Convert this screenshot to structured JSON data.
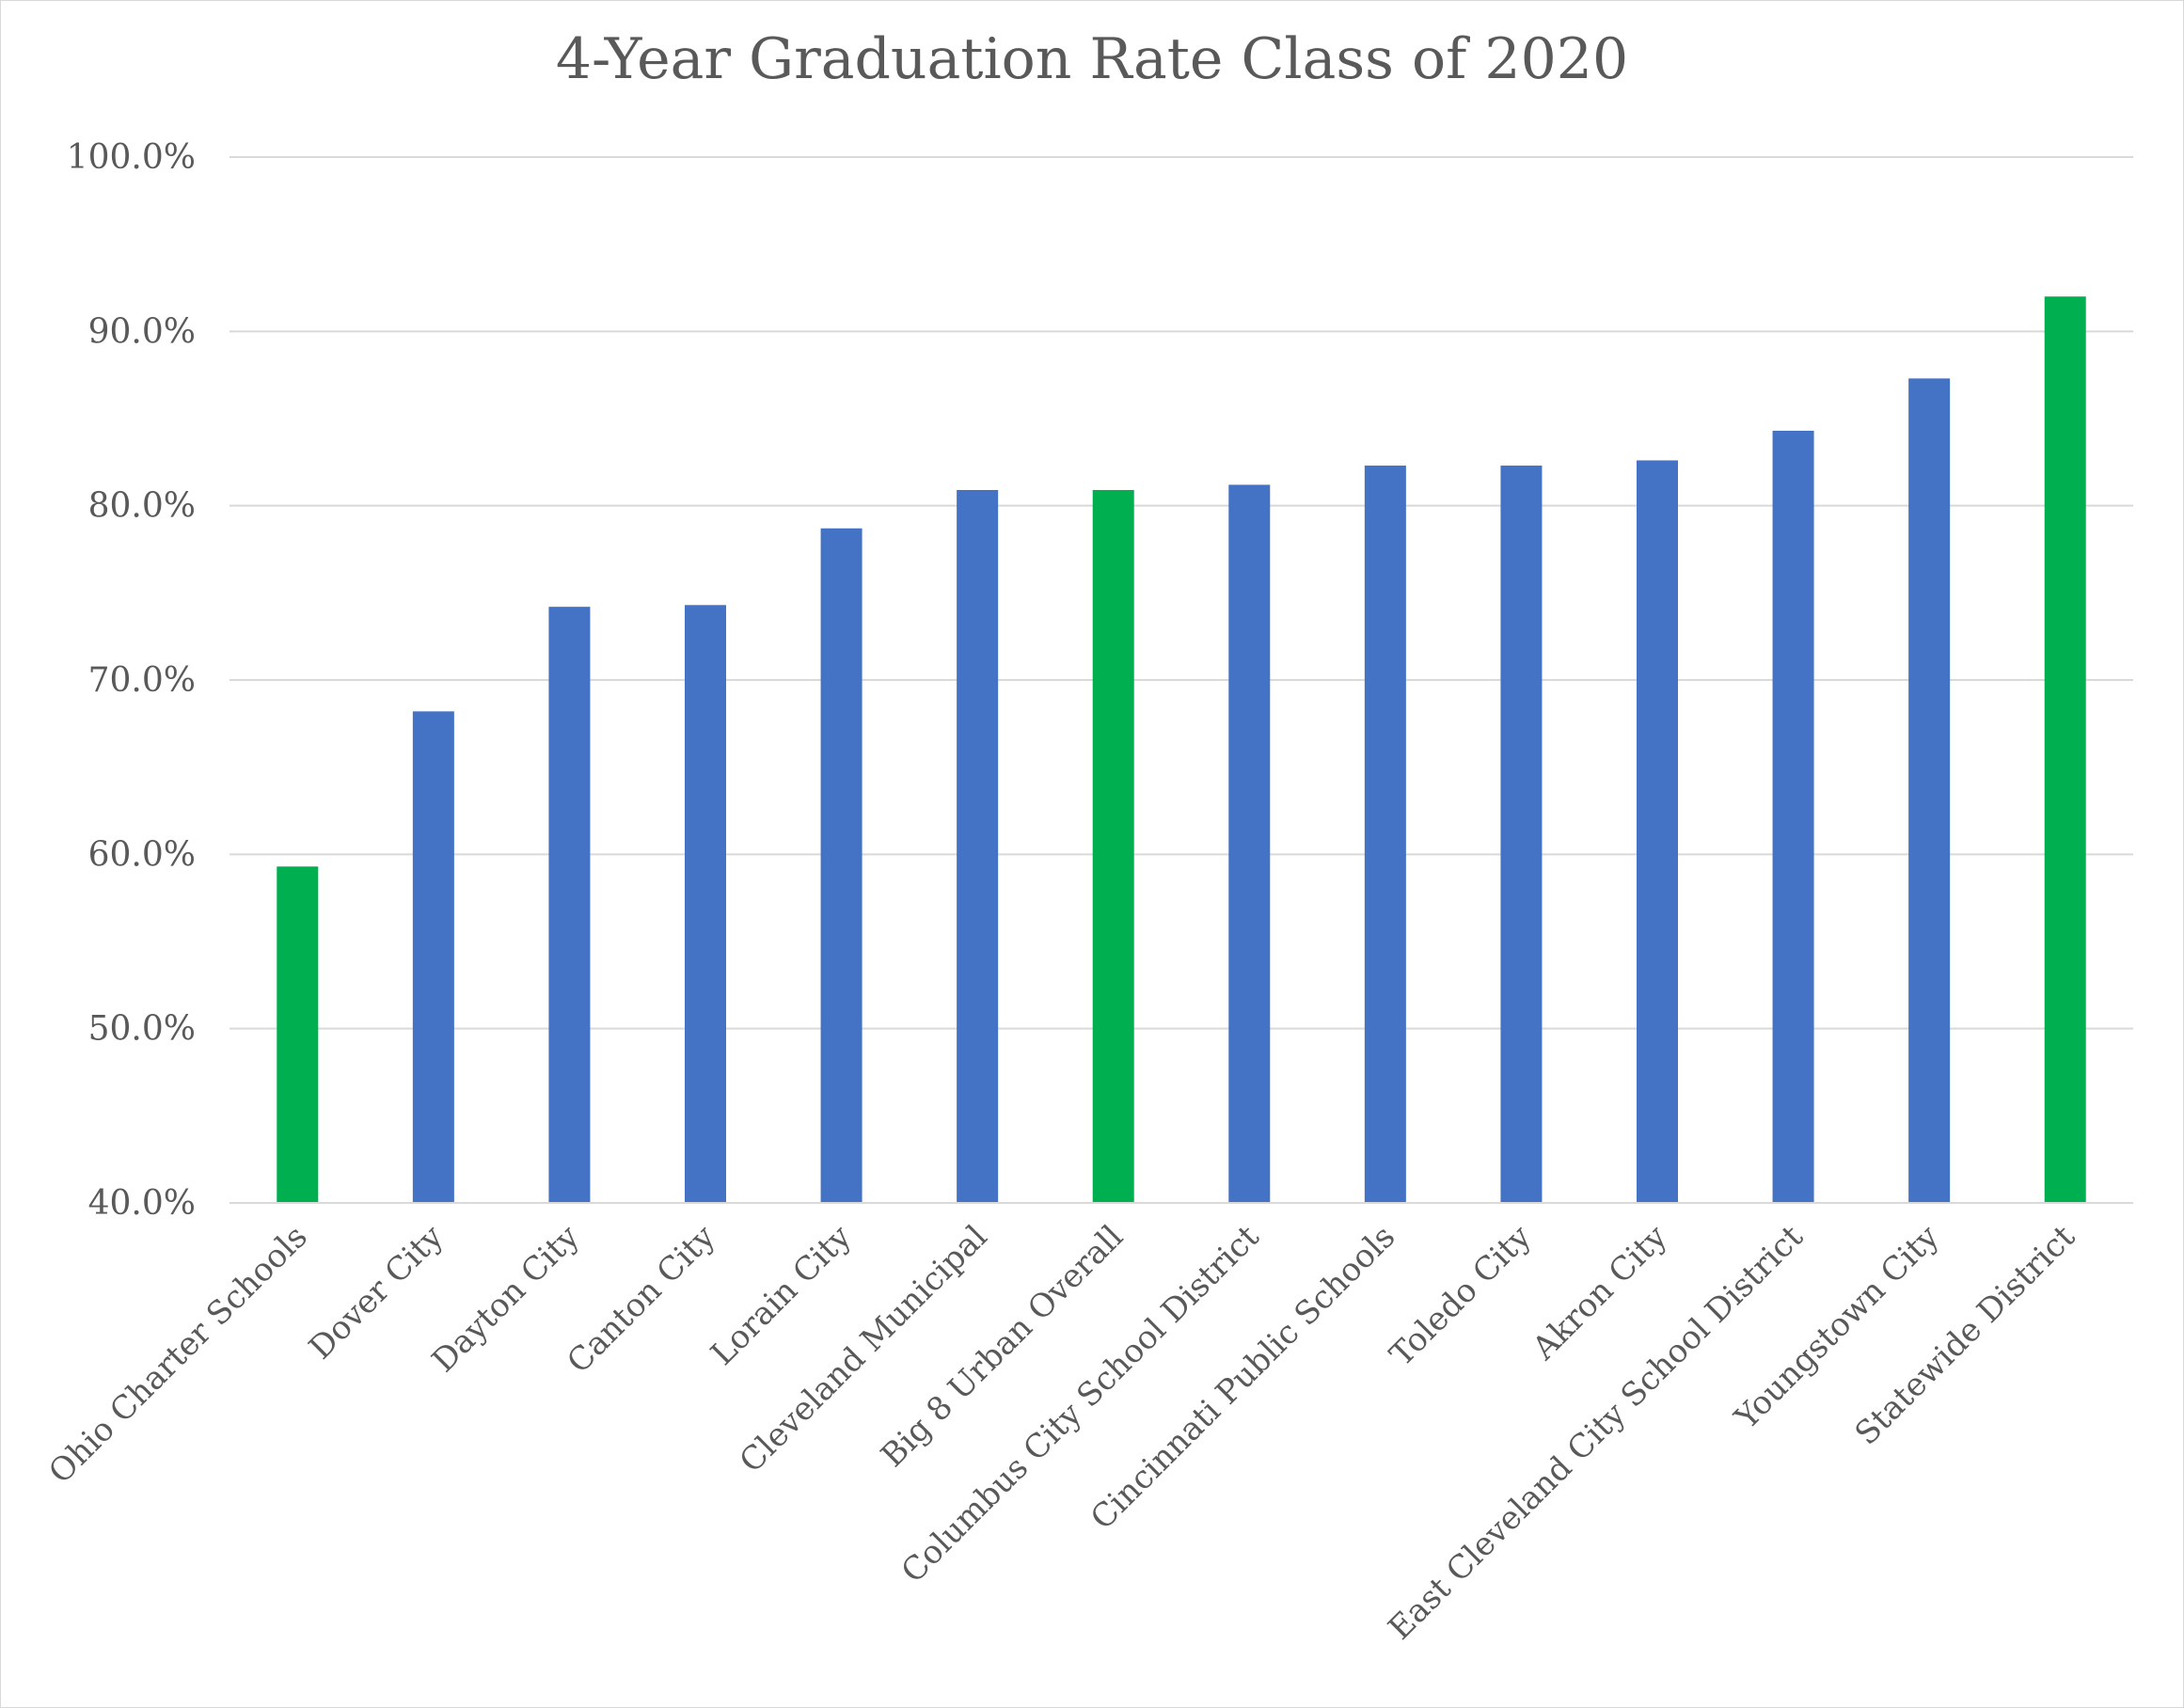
{
  "chart_data": {
    "type": "bar",
    "title": "4-Year Graduation Rate Class of 2020",
    "xlabel": "",
    "ylabel": "",
    "ylim": [
      40,
      100
    ],
    "yticks": [
      "40.0%",
      "50.0%",
      "60.0%",
      "70.0%",
      "80.0%",
      "90.0%",
      "100.0%"
    ],
    "grid": true,
    "categories": [
      "Ohio Charter Schools",
      "Dover City",
      "Dayton City",
      "Canton City",
      "Lorain City",
      "Cleveland Municipal",
      "Big 8 Urban Overall",
      "Columbus City School District",
      "Cincinnati Public Schools",
      "Toledo City",
      "Akron City",
      "East Cleveland City School District",
      "Youngstown City",
      "Statewide District"
    ],
    "values": [
      59.3,
      68.2,
      74.2,
      74.3,
      78.7,
      80.9,
      80.9,
      81.2,
      82.3,
      82.3,
      82.6,
      84.3,
      87.3,
      92.0
    ],
    "bar_colors": [
      "#00b050",
      "#4472c4",
      "#4472c4",
      "#4472c4",
      "#4472c4",
      "#4472c4",
      "#00b050",
      "#4472c4",
      "#4472c4",
      "#4472c4",
      "#4472c4",
      "#4472c4",
      "#4472c4",
      "#00b050"
    ]
  }
}
